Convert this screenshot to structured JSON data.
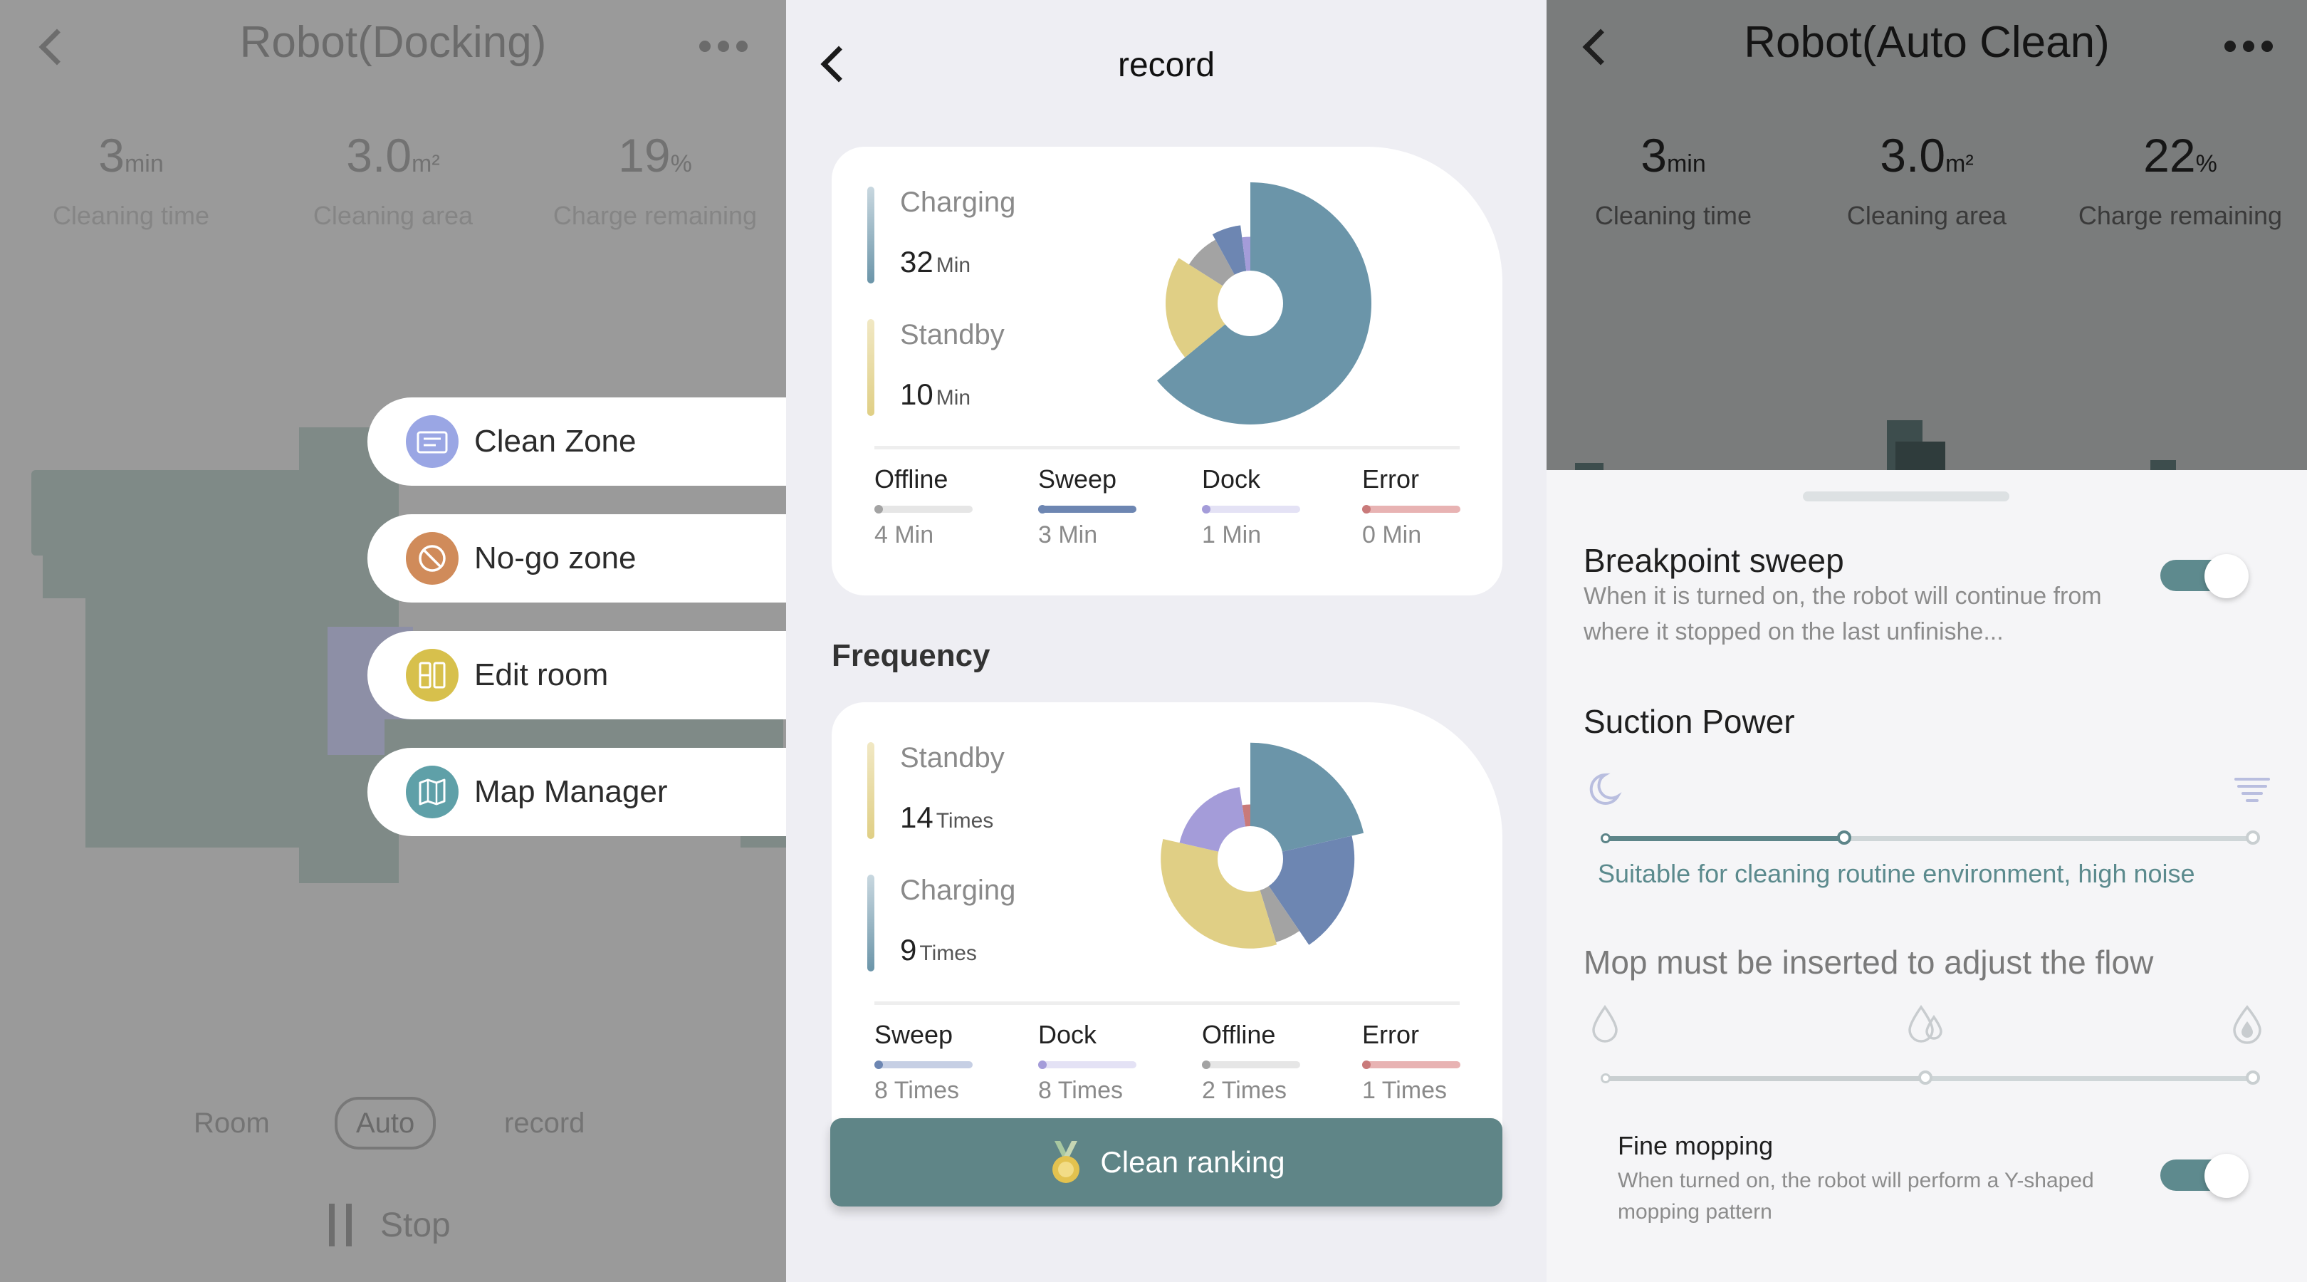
{
  "left": {
    "title": "Robot(Docking)",
    "stats": [
      {
        "value": "3",
        "unit": "min",
        "label": "Cleaning time"
      },
      {
        "value": "3.0",
        "unit": "m²",
        "label": "Cleaning area"
      },
      {
        "value": "19",
        "unit": "%",
        "label": "Charge remaining"
      }
    ],
    "menu": [
      {
        "label": "Clean Zone",
        "icon": "clean-zone-icon",
        "color": "#9aa6e4"
      },
      {
        "label": "No-go zone",
        "icon": "no-go-zone-icon",
        "color": "#d08b5a"
      },
      {
        "label": "Edit room",
        "icon": "edit-room-icon",
        "color": "#d7c04c"
      },
      {
        "label": "Map Manager",
        "icon": "map-manager-icon",
        "color": "#5fa0a8"
      }
    ],
    "modes": [
      {
        "label": "Room",
        "active": false
      },
      {
        "label": "Auto",
        "active": true
      },
      {
        "label": "record",
        "active": false
      }
    ],
    "stop_label": "Stop"
  },
  "middle": {
    "title": "record",
    "duration_card": {
      "legend": [
        {
          "label": "Charging",
          "value": "32",
          "unit": "Min",
          "color": "#6b95a9"
        },
        {
          "label": "Standby",
          "value": "10",
          "unit": "Min",
          "color": "#e0cf85"
        }
      ],
      "metrics": [
        {
          "label": "Offline",
          "value": "4 Min",
          "color": "#a3a3a3",
          "track": "#e6e6e6"
        },
        {
          "label": "Sweep",
          "value": "3 Min",
          "color": "#6d86b2",
          "track": "#6d86b2"
        },
        {
          "label": "Dock",
          "value": "1 Min",
          "color": "#a49cd9",
          "track": "#e4e2f5"
        },
        {
          "label": "Error",
          "value": "0 Min",
          "color": "#c97a7a",
          "track": "#e8b3b3"
        }
      ]
    },
    "frequency_title": "Frequency",
    "frequency_card": {
      "legend": [
        {
          "label": "Standby",
          "value": "14",
          "unit": "Times",
          "color": "#e0cf85"
        },
        {
          "label": "Charging",
          "value": "9",
          "unit": "Times",
          "color": "#6b95a9"
        }
      ],
      "metrics": [
        {
          "label": "Sweep",
          "value": "8 Times",
          "color": "#6d86b2",
          "track": "#c6cfe4"
        },
        {
          "label": "Dock",
          "value": "8 Times",
          "color": "#a49cd9",
          "track": "#e4e2f5"
        },
        {
          "label": "Offline",
          "value": "2 Times",
          "color": "#a3a3a3",
          "track": "#e6e6e6"
        },
        {
          "label": "Error",
          "value": "1 Times",
          "color": "#c97a7a",
          "track": "#e8b3b3"
        }
      ]
    },
    "ranking_button": "Clean ranking"
  },
  "right": {
    "title": "Robot(Auto Clean)",
    "stats": [
      {
        "value": "3",
        "unit": "min",
        "label": "Cleaning time"
      },
      {
        "value": "3.0",
        "unit": "m²",
        "label": "Cleaning area"
      },
      {
        "value": "22",
        "unit": "%",
        "label": "Charge remaining"
      }
    ],
    "breakpoint": {
      "title": "Breakpoint sweep",
      "desc": "When it is turned on, the robot will continue from where it stopped on the last unfinishe...",
      "on": true
    },
    "suction": {
      "title": "Suction Power",
      "level_fraction": 0.375,
      "hint": "Suitable for cleaning routine environment, high noise"
    },
    "mop": {
      "title": "Mop must be inserted to adjust the flow",
      "level_fraction": 0.5
    },
    "fine_mopping": {
      "title": "Fine mopping",
      "desc": "When turned on, the robot will perform a Y-shaped mopping pattern",
      "on": true
    }
  },
  "chart_data": [
    {
      "type": "pie",
      "name": "duration",
      "categories": [
        "Charging",
        "Standby",
        "Offline",
        "Sweep",
        "Dock",
        "Error"
      ],
      "values": [
        32,
        10,
        4,
        3,
        1,
        0
      ],
      "units": "Min",
      "colors": [
        "#6b95a9",
        "#e0cf85",
        "#a3a3a3",
        "#6d86b2",
        "#a49cd9",
        "#c97a7a"
      ],
      "start_deg": 0,
      "radii": [
        1.0,
        0.7,
        0.6,
        0.65,
        0.55,
        0.4
      ]
    },
    {
      "type": "pie",
      "name": "frequency",
      "categories": [
        "Charging",
        "Sweep",
        "Offline",
        "Standby",
        "Dock",
        "Error"
      ],
      "values": [
        9,
        8,
        2,
        14,
        8,
        1
      ],
      "units": "Times",
      "colors": [
        "#6b95a9",
        "#6d86b2",
        "#a3a3a3",
        "#e0cf85",
        "#a49cd9",
        "#c97a7a"
      ],
      "start_deg": 0,
      "radii": [
        0.96,
        0.86,
        0.72,
        0.74,
        0.6,
        0.45
      ]
    }
  ]
}
